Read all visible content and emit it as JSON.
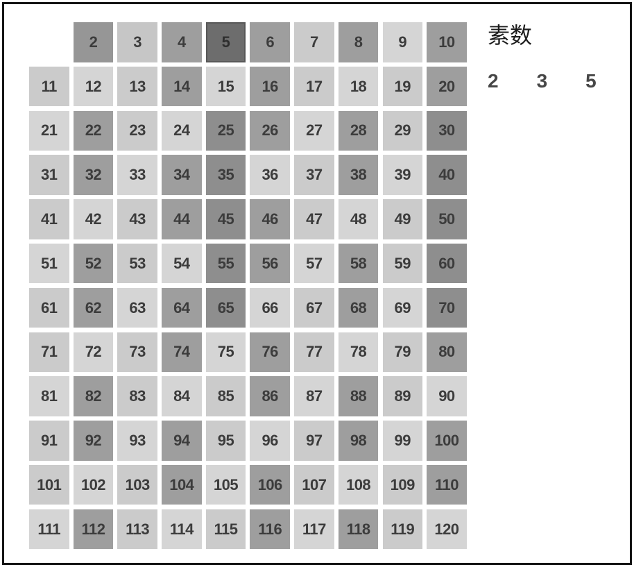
{
  "figure": {
    "title": "素数",
    "legend_primes": [
      "2",
      "3",
      "5"
    ]
  },
  "palette": {
    "page_bg": "#ffffff",
    "frame_border": "#141414",
    "cell_text": "#3c3c3c",
    "title_text": "#1c1c1c",
    "legend_text": "#474747",
    "unmarked": "#cbcbcb",
    "marked_by_2": "#9e9e9e",
    "marked_by_3": "#d5d5d5",
    "marked_by_5": "#8e8e8e",
    "prime_2": "#969696",
    "prime_3": "#c6c6c6",
    "prime_5": "#6d6d6d",
    "prime_5_border": "#585858"
  },
  "chart_data": {
    "type": "heatmap",
    "title": "素数",
    "description": "Sieve of Eratosthenes number grid from 2 to 120 laid out in 10 columns and 12 rows (top-left slot for 1 is empty). Cell shading shows sieve state: numbers whose last crossing was by 2 are mid gray, by 3 are pale gray, by 5 (crossing begun at 25 and reached 70) are dark gray; numbers not yet crossed are light gray; the current prime 5 is darkest.",
    "grid": {
      "columns": 10,
      "rows": 12,
      "first_number": 2,
      "last_number": 120,
      "empty_leading_cells": 1
    },
    "legend_values": [
      2,
      3,
      5
    ],
    "cell_categories": {
      "prime_2": [
        2
      ],
      "prime_3": [
        3
      ],
      "prime_5": [
        5
      ],
      "marked_by_2": [
        4,
        6,
        8,
        10,
        14,
        16,
        20,
        22,
        26,
        28,
        32,
        34,
        38,
        44,
        46,
        52,
        56,
        58,
        62,
        64,
        68,
        74,
        76,
        80,
        82,
        86,
        88,
        92,
        94,
        98,
        100,
        104,
        106,
        110,
        112,
        116,
        118
      ],
      "marked_by_3": [
        9,
        12,
        15,
        18,
        21,
        24,
        27,
        33,
        36,
        39,
        42,
        48,
        51,
        54,
        57,
        63,
        66,
        69,
        72,
        75,
        78,
        81,
        84,
        87,
        90,
        93,
        96,
        99,
        102,
        105,
        108,
        111,
        114,
        117,
        120
      ],
      "marked_by_5": [
        25,
        30,
        35,
        40,
        45,
        50,
        55,
        60,
        65,
        70
      ],
      "unmarked": [
        7,
        11,
        13,
        17,
        19,
        23,
        29,
        31,
        37,
        41,
        43,
        47,
        49,
        53,
        59,
        61,
        67,
        71,
        73,
        77,
        79,
        83,
        85,
        89,
        91,
        95,
        97,
        101,
        103,
        107,
        109,
        113,
        115,
        119
      ]
    }
  }
}
